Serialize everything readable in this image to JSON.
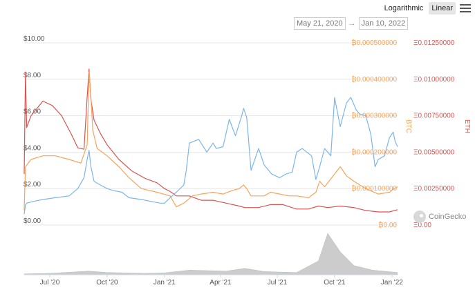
{
  "toolbar": {
    "logarithmic_label": "Logarithmic",
    "linear_label": "Linear",
    "active": "Linear",
    "menu_icon": "hamburger-menu-icon"
  },
  "range": {
    "start": "May 21, 2020",
    "end": "Jan 10, 2022",
    "arrow": "→"
  },
  "credit": {
    "text": "CoinGecko",
    "logo_icon": "coingecko-gecko-icon"
  },
  "colors": {
    "usd": "#7cb5ec",
    "btc": "#f7a35c",
    "eth": "#d9534f",
    "volume": "#cccccc",
    "grid": "#e6e6e6"
  },
  "chart_data": {
    "type": "line",
    "xlabel": "",
    "x_tick_labels": [
      "Jul '20",
      "Oct '20",
      "Jan '21",
      "Apr '21",
      "Jul '21",
      "Oct '21",
      "Jan '22"
    ],
    "x_tick_dates": [
      "2020-07-01",
      "2020-10-01",
      "2021-01-01",
      "2021-04-01",
      "2021-07-01",
      "2021-10-01",
      "2022-01-01"
    ],
    "xlim": [
      "2020-05-21",
      "2022-01-10"
    ],
    "axes": {
      "usd": {
        "label": "",
        "min": 0,
        "max": 10,
        "ticks": [
          "$0.00",
          "$2.00",
          "$4.00",
          "$6.00",
          "$8.00",
          "$10.00"
        ],
        "tick_values": [
          0,
          2,
          4,
          6,
          8,
          10
        ]
      },
      "btc": {
        "label": "BTC",
        "min": 0,
        "max": 0.0005,
        "ticks": [
          "₿0.00",
          "₿0.000100000",
          "₿0.000200000",
          "₿0.000300000",
          "₿0.000400000",
          "₿0.000500000"
        ],
        "tick_values": [
          0,
          0.0001,
          0.0002,
          0.0003,
          0.0004,
          0.0005
        ]
      },
      "eth": {
        "label": "ETH",
        "min": 0,
        "max": 0.0125,
        "ticks": [
          "Ξ0.00",
          "Ξ0.00250000",
          "Ξ0.00500000",
          "Ξ0.00750000",
          "Ξ0.01000000",
          "Ξ0.01250000"
        ],
        "tick_values": [
          0,
          0.0025,
          0.005,
          0.0075,
          0.01,
          0.0125
        ]
      }
    },
    "series": [
      {
        "axis": "usd",
        "x": [
          "2020-05-21",
          "2020-05-23",
          "2020-05-25",
          "2020-06-05",
          "2020-06-20",
          "2020-07-10",
          "2020-08-01",
          "2020-08-15",
          "2020-08-25",
          "2020-08-30",
          "2020-09-02",
          "2020-09-05",
          "2020-09-10",
          "2020-09-20",
          "2020-10-01",
          "2020-10-10",
          "2020-10-25",
          "2020-11-05",
          "2020-11-25",
          "2020-12-10",
          "2020-12-25",
          "2021-01-01",
          "2021-01-10",
          "2021-01-20",
          "2021-02-01",
          "2021-02-05",
          "2021-02-10",
          "2021-02-25",
          "2021-03-10",
          "2021-03-20",
          "2021-03-25",
          "2021-04-05",
          "2021-04-15",
          "2021-04-25",
          "2021-05-05",
          "2021-05-08",
          "2021-05-13",
          "2021-05-20",
          "2021-06-01",
          "2021-06-10",
          "2021-06-22",
          "2021-07-05",
          "2021-07-15",
          "2021-07-25",
          "2021-08-01",
          "2021-08-10",
          "2021-08-25",
          "2021-09-01",
          "2021-09-07",
          "2021-09-15",
          "2021-09-25",
          "2021-10-01",
          "2021-10-10",
          "2021-10-20",
          "2021-10-27",
          "2021-11-05",
          "2021-11-10",
          "2021-11-20",
          "2021-11-28",
          "2021-12-05",
          "2021-12-10",
          "2021-12-20",
          "2021-12-28",
          "2022-01-03",
          "2022-01-06",
          "2022-01-10"
        ],
        "values": [
          0.6,
          1.1,
          1.2,
          1.3,
          1.4,
          1.5,
          1.6,
          2.0,
          2.6,
          3.6,
          4.1,
          3.2,
          2.4,
          2.2,
          2.0,
          1.9,
          1.8,
          1.5,
          1.4,
          1.3,
          1.2,
          1.2,
          1.5,
          1.8,
          2.2,
          3.0,
          4.5,
          4.7,
          4.0,
          4.5,
          4.2,
          4.3,
          5.8,
          4.9,
          6.0,
          6.4,
          5.9,
          3.0,
          4.2,
          3.3,
          2.8,
          2.6,
          2.8,
          2.9,
          4.0,
          4.2,
          3.8,
          2.5,
          3.2,
          4.2,
          3.8,
          7.0,
          5.4,
          6.7,
          7.0,
          6.3,
          6.1,
          6.0,
          5.0,
          3.2,
          3.6,
          3.8,
          4.8,
          5.1,
          4.6,
          4.3
        ]
      },
      {
        "axis": "btc",
        "x": [
          "2020-05-21",
          "2020-05-23",
          "2020-06-01",
          "2020-06-20",
          "2020-07-10",
          "2020-08-01",
          "2020-08-20",
          "2020-08-30",
          "2020-09-02",
          "2020-09-05",
          "2020-09-08",
          "2020-09-15",
          "2020-10-01",
          "2020-10-20",
          "2020-11-05",
          "2020-11-25",
          "2020-12-20",
          "2021-01-10",
          "2021-01-20",
          "2021-02-01",
          "2021-02-15",
          "2021-03-01",
          "2021-03-20",
          "2021-04-05",
          "2021-04-20",
          "2021-05-01",
          "2021-05-08",
          "2021-05-13",
          "2021-05-20",
          "2021-06-10",
          "2021-06-20",
          "2021-07-05",
          "2021-07-20",
          "2021-08-01",
          "2021-08-20",
          "2021-09-01",
          "2021-09-07",
          "2021-09-15",
          "2021-10-01",
          "2021-10-10",
          "2021-10-20",
          "2021-11-01",
          "2021-11-20",
          "2021-12-10",
          "2021-12-28",
          "2022-01-04",
          "2022-01-10"
        ],
        "values": [
          4e-05,
          0.00016,
          0.00018,
          0.00019,
          0.00019,
          0.00018,
          0.00017,
          0.00022,
          0.00042,
          0.00035,
          0.00026,
          0.00021,
          0.00019,
          0.00016,
          0.00013,
          0.0001,
          9e-05,
          8e-05,
          5e-05,
          6e-05,
          8e-05,
          8.5e-05,
          9e-05,
          8.5e-05,
          9.5e-05,
          0.0001,
          0.00011,
          0.0001,
          8e-05,
          8e-05,
          9e-05,
          8.5e-05,
          8e-05,
          8e-05,
          7.5e-05,
          9e-05,
          0.00012,
          0.000105,
          0.00014,
          0.00016,
          0.000135,
          0.00012,
          0.0001,
          8.5e-05,
          9e-05,
          0.0001,
          0.000105
        ]
      },
      {
        "axis": "eth",
        "x": [
          "2020-05-21",
          "2020-05-23",
          "2020-05-25",
          "2020-06-01",
          "2020-06-20",
          "2020-07-05",
          "2020-07-20",
          "2020-08-05",
          "2020-08-15",
          "2020-08-25",
          "2020-08-30",
          "2020-09-02",
          "2020-09-05",
          "2020-09-10",
          "2020-09-20",
          "2020-10-01",
          "2020-10-20",
          "2020-11-10",
          "2020-12-01",
          "2020-12-20",
          "2021-01-01",
          "2021-01-10",
          "2021-01-20",
          "2021-02-10",
          "2021-03-01",
          "2021-03-20",
          "2021-04-10",
          "2021-05-01",
          "2021-05-10",
          "2021-06-01",
          "2021-06-20",
          "2021-07-10",
          "2021-08-01",
          "2021-08-20",
          "2021-09-05",
          "2021-09-20",
          "2021-10-10",
          "2021-11-01",
          "2021-11-20",
          "2021-12-10",
          "2021-12-28",
          "2022-01-05",
          "2022-01-10"
        ],
        "values": [
          0.0035,
          0.0105,
          0.0067,
          0.0075,
          0.0085,
          0.0082,
          0.0075,
          0.0062,
          0.0053,
          0.0052,
          0.0088,
          0.0107,
          0.0086,
          0.0072,
          0.0063,
          0.0055,
          0.0045,
          0.0037,
          0.0032,
          0.0029,
          0.0025,
          0.0023,
          0.002,
          0.002,
          0.0017,
          0.0017,
          0.0015,
          0.0013,
          0.0012,
          0.0012,
          0.0014,
          0.0014,
          0.0011,
          0.0011,
          0.0013,
          0.0012,
          0.0013,
          0.0012,
          0.001,
          0.0009,
          0.0009,
          0.001,
          0.00105
        ]
      }
    ],
    "volume": {
      "x": [
        "2020-05-21",
        "2020-07-01",
        "2020-09-01",
        "2020-10-01",
        "2020-12-01",
        "2021-01-01",
        "2021-02-10",
        "2021-04-10",
        "2021-05-10",
        "2021-06-10",
        "2021-07-01",
        "2021-08-01",
        "2021-09-05",
        "2021-09-20",
        "2021-10-10",
        "2021-11-01",
        "2021-12-01",
        "2022-01-10"
      ],
      "values": [
        0.02,
        0.03,
        0.08,
        0.05,
        0.03,
        0.04,
        0.1,
        0.08,
        0.14,
        0.07,
        0.06,
        0.05,
        0.3,
        0.9,
        0.5,
        0.2,
        0.1,
        0.05
      ]
    }
  }
}
